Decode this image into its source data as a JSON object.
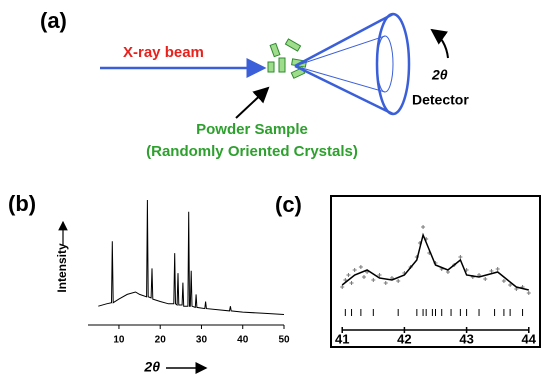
{
  "diagram": {
    "label": "(a)",
    "beam_label": "X-ray beam",
    "sample_label": "Powder Sample",
    "sample_sublabel": "(Randomly Oriented Crystals)",
    "angle_label": "2θ",
    "detector_label": "Detector"
  },
  "chart_data": [
    {
      "type": "line",
      "label": "(b)",
      "ylabel": "Intensity",
      "xlabel": "2θ",
      "color": "#000000",
      "xlim": [
        2.5,
        50
      ],
      "xticks": [
        10,
        20,
        30,
        40,
        50
      ],
      "ylim": [
        0,
        100
      ],
      "x": [
        5,
        7,
        8.2,
        8.4,
        8.6,
        10,
        12,
        14,
        15,
        16.7,
        16.9,
        17.1,
        17.8,
        18.0,
        18.2,
        20,
        22,
        23.3,
        23.5,
        23.7,
        24.1,
        24.3,
        24.5,
        25.3,
        25.5,
        25.7,
        26.7,
        26.9,
        27.1,
        27.3,
        27.5,
        27.7,
        28.5,
        28.7,
        28.9,
        30.8,
        31.0,
        31.2,
        34,
        36.8,
        37,
        37.2,
        40,
        45,
        50
      ],
      "values": [
        10,
        12,
        13,
        65,
        13,
        16,
        20,
        22,
        20,
        18,
        100,
        18,
        17,
        42,
        16,
        14,
        12,
        12,
        55,
        12,
        11,
        38,
        11,
        11,
        30,
        10,
        10,
        90,
        10,
        10,
        40,
        10,
        9,
        20,
        9,
        8,
        14,
        8,
        7,
        6,
        10,
        6,
        5,
        4,
        3
      ]
    },
    {
      "type": "scatter",
      "label": "(c)",
      "color": "#777777",
      "fit_color": "#000000",
      "xlim": [
        40.9,
        44.1
      ],
      "xticks": [
        41,
        42,
        43,
        44
      ],
      "ylim": [
        0,
        100
      ],
      "x": [
        41.0,
        41.05,
        41.1,
        41.15,
        41.2,
        41.3,
        41.35,
        41.4,
        41.5,
        41.6,
        41.7,
        41.8,
        41.9,
        42.0,
        42.1,
        42.2,
        42.25,
        42.3,
        42.35,
        42.4,
        42.5,
        42.6,
        42.7,
        42.8,
        42.9,
        43.0,
        43.1,
        43.2,
        43.3,
        43.4,
        43.5,
        43.6,
        43.7,
        43.8,
        43.9,
        44.0
      ],
      "values": [
        18,
        25,
        30,
        22,
        35,
        38,
        28,
        33,
        25,
        30,
        22,
        27,
        24,
        32,
        38,
        48,
        62,
        78,
        66,
        52,
        42,
        36,
        33,
        40,
        48,
        35,
        28,
        30,
        26,
        34,
        36,
        24,
        20,
        16,
        18,
        12
      ],
      "fit_x": [
        41.0,
        41.2,
        41.4,
        41.6,
        41.8,
        42.0,
        42.2,
        42.3,
        42.4,
        42.5,
        42.7,
        42.9,
        43.0,
        43.2,
        43.5,
        43.8,
        44.0
      ],
      "fit_values": [
        20,
        30,
        35,
        27,
        25,
        30,
        45,
        70,
        55,
        40,
        35,
        45,
        30,
        28,
        33,
        18,
        15
      ],
      "reflections": [
        41.05,
        41.15,
        41.3,
        41.5,
        41.9,
        42.2,
        42.3,
        42.35,
        42.45,
        42.5,
        42.6,
        42.75,
        42.9,
        43.0,
        43.2,
        43.45,
        43.6,
        43.7,
        43.9
      ]
    }
  ]
}
